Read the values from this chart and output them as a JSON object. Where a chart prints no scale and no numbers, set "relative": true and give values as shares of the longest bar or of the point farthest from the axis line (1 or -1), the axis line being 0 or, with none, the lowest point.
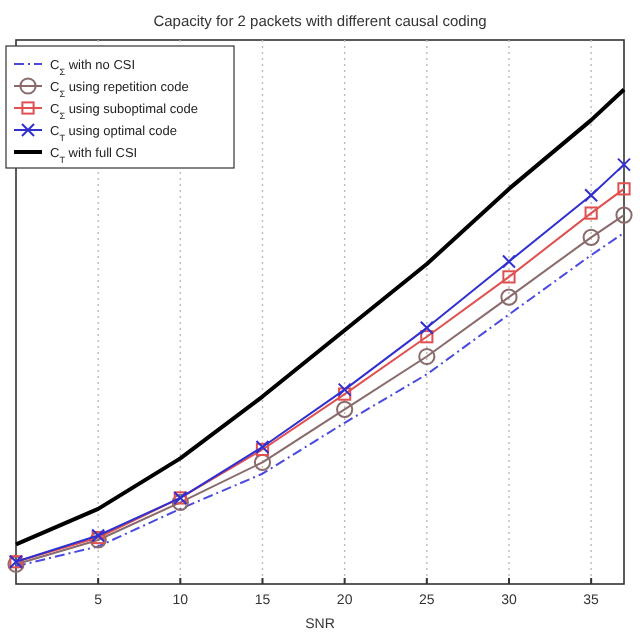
{
  "chart_data": {
    "type": "line",
    "title": "Capacity for 2 packets with different causal coding",
    "xlabel": "SNR",
    "relative": true,
    "x": [
      0,
      5,
      10,
      15,
      20,
      25,
      30,
      35,
      37
    ],
    "xlim": [
      0,
      37
    ],
    "xticks": [
      5,
      10,
      15,
      20,
      25,
      30,
      35
    ],
    "grid": "x",
    "legend": "top left",
    "series": [
      {
        "name": "C$_{Σ}$ with no CSI",
        "color": "#4a4ae0",
        "line_style": "dashed",
        "marker": "none",
        "values": [
          0.036,
          0.076,
          0.152,
          0.223,
          0.326,
          0.424,
          0.545,
          0.665,
          0.71
        ]
      },
      {
        "name": "C$_{Σ}$ using repetition code",
        "color": "#8a6a6a",
        "line_style": "solid",
        "marker": "circle",
        "values": [
          0.04,
          0.089,
          0.165,
          0.246,
          0.353,
          0.46,
          0.58,
          0.701,
          0.746
        ]
      },
      {
        "name": "C$_{Σ}$ using suboptimal code",
        "color": "#e05050",
        "line_style": "solid",
        "marker": "square",
        "values": [
          0.045,
          0.094,
          0.174,
          0.272,
          0.384,
          0.5,
          0.621,
          0.75,
          0.799
        ]
      },
      {
        "name": "C$_{T}$ using optimal code",
        "color": "#3030d0",
        "line_style": "solid",
        "marker": "cross",
        "values": [
          0.045,
          0.098,
          0.174,
          0.277,
          0.393,
          0.518,
          0.652,
          0.786,
          0.848
        ]
      },
      {
        "name": "C$_{T}$ with full CSI",
        "color": "#000000",
        "line_style": "solid",
        "marker": "none",
        "values": [
          0.08,
          0.152,
          0.254,
          0.379,
          0.513,
          0.647,
          0.799,
          0.938,
          1
        ]
      }
    ]
  }
}
